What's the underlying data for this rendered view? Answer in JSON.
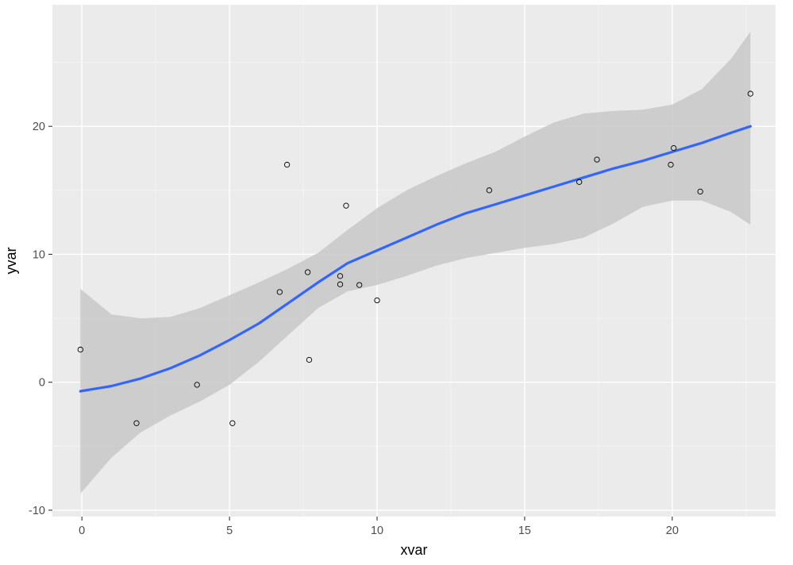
{
  "chart_data": {
    "type": "scatter",
    "xlabel": "xvar",
    "ylabel": "yvar",
    "xlim": [
      -1.0,
      23.5
    ],
    "ylim": [
      -10.5,
      29.5
    ],
    "x_ticks": [
      0,
      5,
      10,
      15,
      20
    ],
    "y_ticks": [
      -10,
      0,
      10,
      20
    ],
    "x_tick_labels": [
      "0",
      "5",
      "10",
      "15",
      "20"
    ],
    "y_tick_labels": [
      "-10",
      "0",
      "10",
      "20"
    ],
    "grid": true,
    "legend": "none",
    "colors": {
      "panel": "#ebebeb",
      "grid_major": "#ffffff",
      "grid_minor": "#f5f5f5",
      "smooth_line": "#3366ff",
      "ribbon": "#c8c8c8",
      "points_stroke": "#000000",
      "tick_mark": "#333333"
    },
    "points": [
      {
        "x": -0.05,
        "y": 2.55
      },
      {
        "x": 1.85,
        "y": -3.2
      },
      {
        "x": 3.9,
        "y": -0.2
      },
      {
        "x": 5.1,
        "y": -3.2
      },
      {
        "x": 6.7,
        "y": 7.05
      },
      {
        "x": 6.95,
        "y": 17.0
      },
      {
        "x": 7.65,
        "y": 8.6
      },
      {
        "x": 7.7,
        "y": 1.75
      },
      {
        "x": 8.75,
        "y": 8.3
      },
      {
        "x": 8.75,
        "y": 7.65
      },
      {
        "x": 8.95,
        "y": 13.8
      },
      {
        "x": 9.4,
        "y": 7.6
      },
      {
        "x": 10.0,
        "y": 6.4
      },
      {
        "x": 13.8,
        "y": 15.0
      },
      {
        "x": 16.85,
        "y": 15.65
      },
      {
        "x": 17.45,
        "y": 17.4
      },
      {
        "x": 19.95,
        "y": 17.0
      },
      {
        "x": 20.05,
        "y": 18.3
      },
      {
        "x": 20.95,
        "y": 14.9
      },
      {
        "x": 22.65,
        "y": 22.55
      }
    ],
    "smooth": {
      "x": [
        -0.05,
        1,
        2,
        3,
        4,
        5,
        6,
        7,
        8,
        9,
        10,
        11,
        12,
        13,
        14,
        15,
        16,
        17,
        18,
        19,
        20,
        21,
        22,
        22.65
      ],
      "y": [
        -0.7,
        -0.3,
        0.3,
        1.1,
        2.1,
        3.3,
        4.6,
        6.2,
        7.8,
        9.3,
        10.3,
        11.3,
        12.3,
        13.2,
        13.9,
        14.6,
        15.3,
        16.0,
        16.7,
        17.3,
        18.0,
        18.7,
        19.5,
        20.0
      ],
      "lower": [
        -8.7,
        -5.9,
        -3.9,
        -2.6,
        -1.5,
        -0.2,
        1.6,
        3.7,
        5.8,
        7.1,
        7.6,
        8.3,
        9.1,
        9.7,
        10.1,
        10.5,
        10.8,
        11.3,
        12.4,
        13.7,
        14.2,
        14.2,
        13.3,
        12.3
      ],
      "upper": [
        7.3,
        5.3,
        5.0,
        5.1,
        5.8,
        6.8,
        7.8,
        8.9,
        10.1,
        11.9,
        13.6,
        15.0,
        16.1,
        17.1,
        18.0,
        19.2,
        20.3,
        21.0,
        21.2,
        21.3,
        21.7,
        22.9,
        25.3,
        27.4
      ]
    }
  }
}
